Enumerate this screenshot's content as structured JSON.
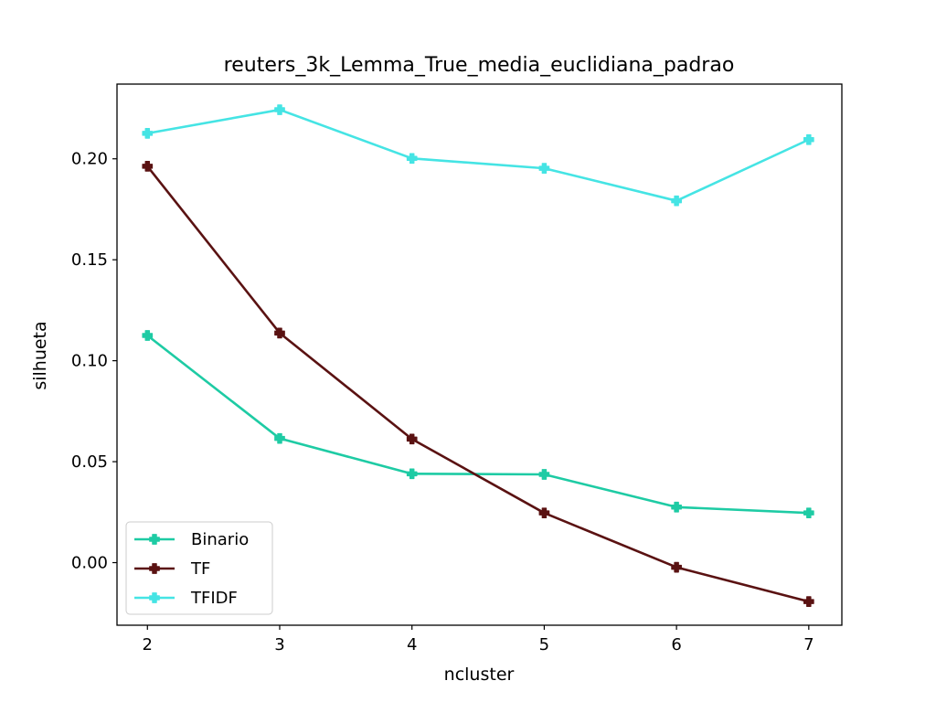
{
  "chart_data": {
    "type": "line",
    "title": "reuters_3k_Lemma_True_media_euclidiana_padrao",
    "xlabel": "ncluster",
    "ylabel": "silhueta",
    "x": [
      2,
      3,
      4,
      5,
      6,
      7
    ],
    "xlim": [
      1.77,
      7.25
    ],
    "ylim": [
      -0.031,
      0.237
    ],
    "xticks": [
      "2",
      "3",
      "4",
      "5",
      "6",
      "7"
    ],
    "yticks": [
      "0.00",
      "0.05",
      "0.10",
      "0.15",
      "0.20"
    ],
    "grid": false,
    "legend_position": "lower-left",
    "marker": "plus-filled",
    "series": [
      {
        "name": "Binario",
        "color": "#1ecba4",
        "values": [
          0.1125,
          0.0615,
          0.044,
          0.0437,
          0.0275,
          0.0246
        ]
      },
      {
        "name": "TF",
        "color": "#5a1212",
        "values": [
          0.1963,
          0.1137,
          0.0612,
          0.0246,
          -0.0023,
          -0.0193
        ]
      },
      {
        "name": "TFIDF",
        "color": "#45e4e4",
        "values": [
          0.2126,
          0.2243,
          0.2002,
          0.1953,
          0.1792,
          0.2095
        ]
      }
    ]
  }
}
